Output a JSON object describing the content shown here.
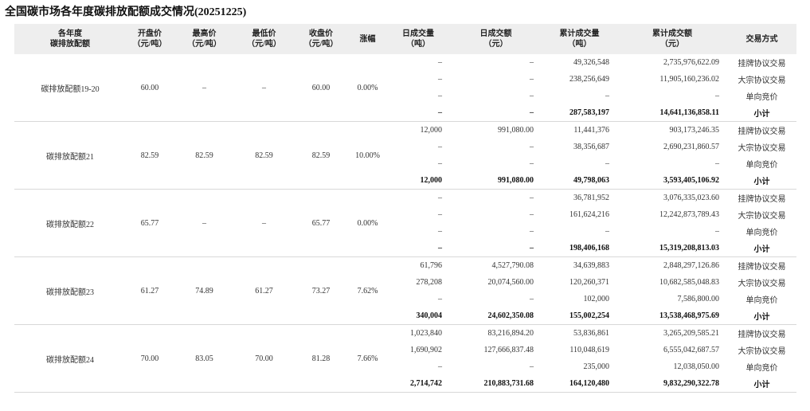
{
  "title": "全国碳市场各年度碳排放配额成交情况(20251225)",
  "table": {
    "header": [
      [
        "各年度",
        "碳排放配额"
      ],
      [
        "开盘价",
        "（元/吨）"
      ],
      [
        "最高价",
        "（元/吨）"
      ],
      [
        "最低价",
        "（元/吨）"
      ],
      [
        "收盘价",
        "（元/吨）"
      ],
      [
        "涨幅"
      ],
      [
        "日成交量",
        "（吨）"
      ],
      [
        "日成交额",
        "（元）"
      ],
      [
        "累计成交量",
        "（吨）"
      ],
      [
        "累计成交额",
        "（元）"
      ],
      [
        "交易方式"
      ]
    ],
    "groups": [
      {
        "cells": [
          "碳排放配额19-20",
          "60.00",
          "–",
          "–",
          "60.00",
          "0.00%"
        ],
        "rows": [
          [
            "–",
            "–",
            "49,326,548",
            "2,735,976,622.09",
            "挂牌协议交易"
          ],
          [
            "–",
            "–",
            "238,256,649",
            "11,905,160,236.02",
            "大宗协议交易"
          ],
          [
            "–",
            "–",
            "–",
            "–",
            "单向竞价"
          ],
          [
            "–",
            "–",
            "287,583,197",
            "14,641,136,858.11",
            "小计"
          ]
        ]
      },
      {
        "cells": [
          "碳排放配额21",
          "82.59",
          "82.59",
          "82.59",
          "82.59",
          "10.00%"
        ],
        "rows": [
          [
            "12,000",
            "991,080.00",
            "11,441,376",
            "903,173,246.35",
            "挂牌协议交易"
          ],
          [
            "–",
            "–",
            "38,356,687",
            "2,690,231,860.57",
            "大宗协议交易"
          ],
          [
            "–",
            "–",
            "–",
            "–",
            "单向竞价"
          ],
          [
            "12,000",
            "991,080.00",
            "49,798,063",
            "3,593,405,106.92",
            "小计"
          ]
        ]
      },
      {
        "cells": [
          "碳排放配额22",
          "65.77",
          "–",
          "–",
          "65.77",
          "0.00%"
        ],
        "rows": [
          [
            "–",
            "–",
            "36,781,952",
            "3,076,335,023.60",
            "挂牌协议交易"
          ],
          [
            "–",
            "–",
            "161,624,216",
            "12,242,873,789.43",
            "大宗协议交易"
          ],
          [
            "–",
            "–",
            "–",
            "–",
            "单向竞价"
          ],
          [
            "–",
            "–",
            "198,406,168",
            "15,319,208,813.03",
            "小计"
          ]
        ]
      },
      {
        "cells": [
          "碳排放配额23",
          "61.27",
          "74.89",
          "61.27",
          "73.27",
          "7.62%"
        ],
        "rows": [
          [
            "61,796",
            "4,527,790.08",
            "34,639,883",
            "2,848,297,126.86",
            "挂牌协议交易"
          ],
          [
            "278,208",
            "20,074,560.00",
            "120,260,371",
            "10,682,585,048.83",
            "大宗协议交易"
          ],
          [
            "–",
            "–",
            "102,000",
            "7,586,800.00",
            "单向竞价"
          ],
          [
            "340,004",
            "24,602,350.08",
            "155,002,254",
            "13,538,468,975.69",
            "小计"
          ]
        ]
      },
      {
        "cells": [
          "碳排放配额24",
          "70.00",
          "83.05",
          "70.00",
          "81.28",
          "7.66%"
        ],
        "rows": [
          [
            "1,023,840",
            "83,216,894.20",
            "53,836,861",
            "3,265,209,585.21",
            "挂牌协议交易"
          ],
          [
            "1,690,902",
            "127,666,837.48",
            "110,048,619",
            "6,555,042,687.57",
            "大宗协议交易"
          ],
          [
            "–",
            "–",
            "235,000",
            "12,038,050.00",
            "单向竞价"
          ],
          [
            "2,714,742",
            "210,883,731.68",
            "164,120,480",
            "9,832,290,322.78",
            "小计"
          ]
        ]
      }
    ]
  }
}
